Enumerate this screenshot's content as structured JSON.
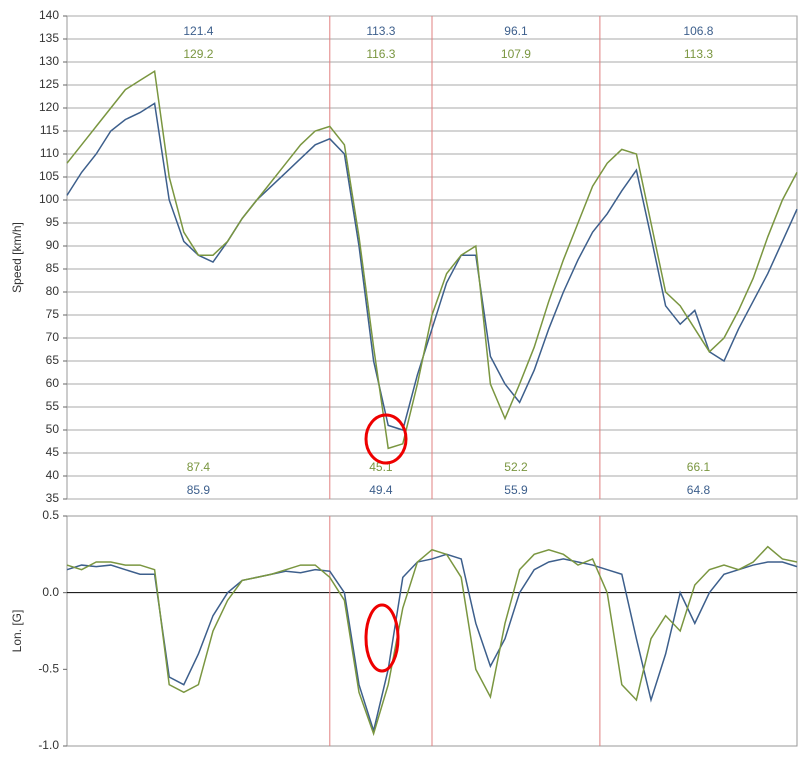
{
  "chart_data": [
    {
      "type": "line",
      "ylabel": "Speed [km/h]",
      "x": [
        0,
        2,
        4,
        6,
        8,
        10,
        12,
        14,
        16,
        18,
        20,
        22,
        24,
        26,
        28,
        30,
        32,
        34,
        36,
        38,
        40,
        42,
        44,
        46,
        48,
        50,
        52,
        54,
        56,
        58,
        60,
        62,
        64,
        66,
        68,
        70,
        72,
        74,
        76,
        78,
        80,
        82,
        84,
        86,
        88,
        90,
        92,
        94,
        96,
        98,
        100
      ],
      "xlim": [
        0,
        100
      ],
      "ylim": [
        35,
        140
      ],
      "yticks": [
        35,
        40,
        45,
        50,
        55,
        60,
        65,
        70,
        75,
        80,
        85,
        90,
        95,
        100,
        105,
        110,
        115,
        120,
        125,
        130,
        135,
        140
      ],
      "grid": true,
      "dividers": [
        36,
        50,
        73
      ],
      "series": [
        {
          "color": "#3d5f8c",
          "values": [
            101,
            106,
            110,
            115,
            117.5,
            119,
            121,
            100,
            91,
            88,
            86.5,
            91,
            96,
            100,
            103,
            106,
            109,
            112,
            113.3,
            110,
            90,
            65,
            51,
            50,
            62,
            72,
            82,
            88,
            88,
            66,
            60,
            56,
            63,
            72,
            80,
            87,
            93,
            97,
            102,
            106.5,
            92,
            77,
            73,
            76,
            67,
            65,
            72,
            78,
            84,
            91,
            98
          ],
          "max_labels": [
            121.4,
            113.3,
            96.1,
            106.8
          ],
          "min_labels": [
            85.9,
            49.4,
            55.9,
            64.8
          ]
        },
        {
          "color": "#7a9640",
          "values": [
            108,
            112,
            116,
            120,
            124,
            126,
            128,
            105,
            93,
            88,
            88,
            91,
            96,
            100,
            104,
            108,
            112,
            115,
            116,
            112,
            92,
            68,
            46,
            47,
            60,
            75,
            84,
            88,
            90,
            60,
            52.5,
            60,
            68,
            78,
            87,
            95,
            103,
            108,
            111,
            110,
            95,
            80,
            77,
            72,
            67,
            70,
            76,
            83,
            92,
            100,
            106
          ],
          "max_labels": [
            129.2,
            116.3,
            107.9,
            113.3
          ],
          "min_labels": [
            87.4,
            45.1,
            52.2,
            66.1
          ]
        }
      ]
    },
    {
      "type": "line",
      "ylabel": "Lon. [G]",
      "x": [
        0,
        2,
        4,
        6,
        8,
        10,
        12,
        14,
        16,
        18,
        20,
        22,
        24,
        26,
        28,
        30,
        32,
        34,
        36,
        38,
        40,
        42,
        44,
        46,
        48,
        50,
        52,
        54,
        56,
        58,
        60,
        62,
        64,
        66,
        68,
        70,
        72,
        74,
        76,
        78,
        80,
        82,
        84,
        86,
        88,
        90,
        92,
        94,
        96,
        98,
        100
      ],
      "xlim": [
        0,
        100
      ],
      "ylim": [
        -1,
        0.5
      ],
      "yticks": [
        {
          "value": -1,
          "label": "-1.0"
        },
        -0.5,
        {
          "value": 0,
          "label": "0.0"
        },
        0.5
      ],
      "grid": false,
      "zero_line": true,
      "dividers": [
        36,
        50,
        73
      ],
      "series": [
        {
          "color": "#3d5f8c",
          "values": [
            0.15,
            0.18,
            0.17,
            0.18,
            0.15,
            0.12,
            0.12,
            -0.55,
            -0.6,
            -0.4,
            -0.15,
            0,
            0.08,
            0.1,
            0.12,
            0.14,
            0.13,
            0.15,
            0.14,
            0,
            -0.6,
            -0.9,
            -0.5,
            0.1,
            0.2,
            0.22,
            0.25,
            0.22,
            -0.2,
            -0.48,
            -0.3,
            0,
            0.15,
            0.2,
            0.22,
            0.2,
            0.18,
            0.15,
            0.12,
            -0.3,
            -0.7,
            -0.4,
            0,
            -0.2,
            0,
            0.12,
            0.15,
            0.18,
            0.2,
            0.2,
            0.17
          ]
        },
        {
          "color": "#7a9640",
          "values": [
            0.18,
            0.15,
            0.2,
            0.2,
            0.18,
            0.18,
            0.15,
            -0.6,
            -0.65,
            -0.6,
            -0.25,
            -0.05,
            0.08,
            0.1,
            0.12,
            0.15,
            0.18,
            0.18,
            0.1,
            -0.05,
            -0.65,
            -0.92,
            -0.6,
            -0.1,
            0.2,
            0.28,
            0.25,
            0.1,
            -0.5,
            -0.68,
            -0.2,
            0.15,
            0.25,
            0.28,
            0.25,
            0.18,
            0.22,
            0,
            -0.6,
            -0.7,
            -0.3,
            -0.15,
            -0.25,
            0.05,
            0.15,
            0.18,
            0.15,
            0.2,
            0.3,
            0.22,
            0.2
          ]
        }
      ]
    }
  ]
}
